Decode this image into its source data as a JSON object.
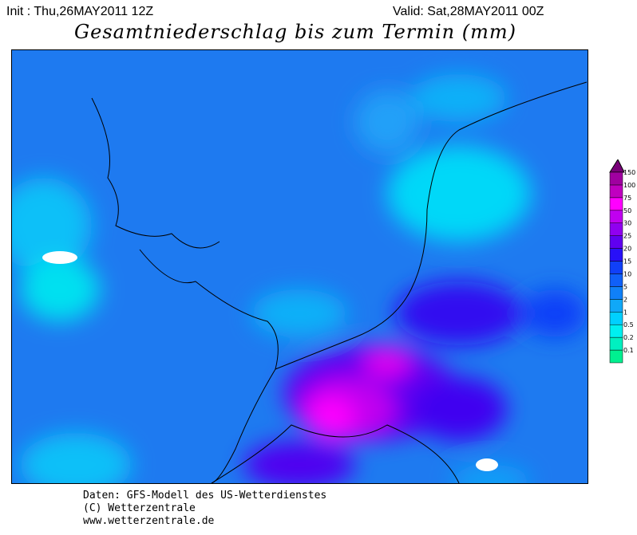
{
  "header": {
    "init": "Init : Thu,26MAY2011 12Z",
    "valid": "Valid: Sat,28MAY2011 00Z",
    "title": "Gesamtniederschlag bis zum Termin (mm)"
  },
  "legend": {
    "levels": [
      "0.1",
      "0.2",
      "0.5",
      "1",
      "2",
      "5",
      "10",
      "15",
      "20",
      "25",
      "30",
      "50",
      "75",
      "100",
      "150"
    ],
    "colors": [
      "#00f090",
      "#00f0c0",
      "#00f0f0",
      "#00d0ff",
      "#10a8f8",
      "#1080f8",
      "#1060f8",
      "#1040f8",
      "#2810f8",
      "#6000f0",
      "#9000f0",
      "#c000f0",
      "#ff00ff",
      "#c000c0",
      "#a000a0",
      "#780078"
    ]
  },
  "footer": {
    "line1": "Daten: GFS-Modell des US-Wetterdienstes",
    "line2": "(C) Wetterzentrale",
    "line3": "www.wetterzentrale.de"
  }
}
